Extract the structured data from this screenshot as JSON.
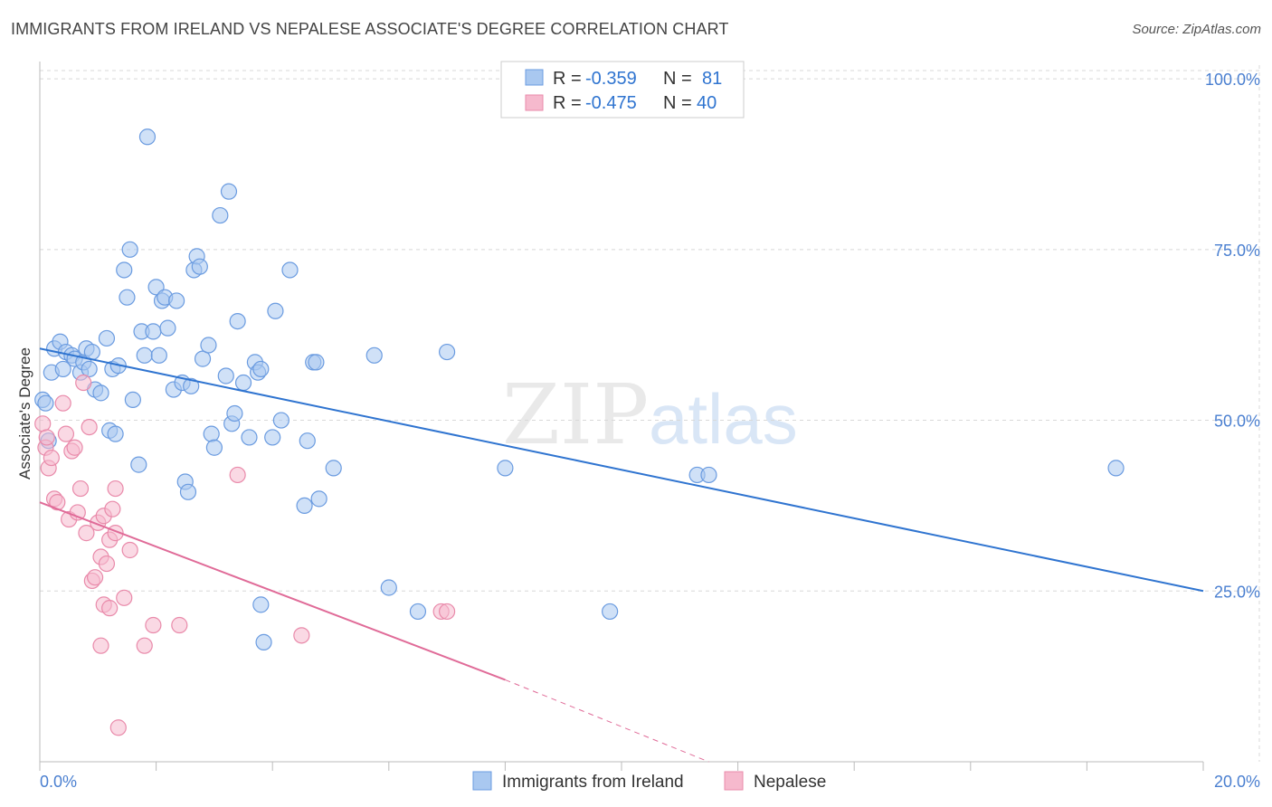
{
  "title": "IMMIGRANTS FROM IRELAND VS NEPALESE ASSOCIATE'S DEGREE CORRELATION CHART",
  "source": "Source: ZipAtlas.com",
  "watermark": {
    "zip": "ZIP",
    "atlas": "atlas"
  },
  "colors": {
    "ireland_fill": "#a9c8f0",
    "ireland_stroke": "#6a9be0",
    "ireland_line": "#2f74d0",
    "nepalese_fill": "#f6b9cd",
    "nepalese_stroke": "#e98aaa",
    "nepalese_line": "#e06b98",
    "grid": "#d8d8d8",
    "tick_text": "#4a7fd0"
  },
  "stats_box": {
    "rows": [
      {
        "r_label": "R =",
        "r_value": "-0.359",
        "n_label": "N =",
        "n_value": "81"
      },
      {
        "r_label": "R =",
        "r_value": "-0.475",
        "n_label": "N =",
        "n_value": "40"
      }
    ]
  },
  "chart_data": {
    "type": "scatter",
    "title": "IMMIGRANTS FROM IRELAND VS NEPALESE ASSOCIATE'S DEGREE CORRELATION CHART",
    "xlabel": "",
    "ylabel": "Associate's Degree",
    "xlim": [
      0,
      20
    ],
    "ylim": [
      0,
      102
    ],
    "x_ticks": [
      0,
      20
    ],
    "x_tick_labels": [
      "0.0%",
      "20.0%"
    ],
    "y_ticks": [
      25,
      50,
      75,
      100
    ],
    "y_tick_labels": [
      "25.0%",
      "50.0%",
      "75.0%",
      "100.0%"
    ],
    "grid": true,
    "legend_position": "bottom",
    "series": [
      {
        "name": "Immigrants from Ireland",
        "trend": {
          "x0": 0,
          "y0": 60.5,
          "x1": 20,
          "y1": 25.0
        },
        "points": [
          [
            0.05,
            53.0
          ],
          [
            0.1,
            52.5
          ],
          [
            0.15,
            47.0
          ],
          [
            0.2,
            57.0
          ],
          [
            0.25,
            60.5
          ],
          [
            0.35,
            61.5
          ],
          [
            0.4,
            57.5
          ],
          [
            0.45,
            60.0
          ],
          [
            0.55,
            59.5
          ],
          [
            0.6,
            59.0
          ],
          [
            0.7,
            57.0
          ],
          [
            0.75,
            58.5
          ],
          [
            0.8,
            60.5
          ],
          [
            0.85,
            57.5
          ],
          [
            0.9,
            60.0
          ],
          [
            0.95,
            54.5
          ],
          [
            1.05,
            54.0
          ],
          [
            1.15,
            62.0
          ],
          [
            1.25,
            57.5
          ],
          [
            1.35,
            58.0
          ],
          [
            1.2,
            48.5
          ],
          [
            1.3,
            48.0
          ],
          [
            1.45,
            72.0
          ],
          [
            1.5,
            68.0
          ],
          [
            1.55,
            75.0
          ],
          [
            1.6,
            53.0
          ],
          [
            1.7,
            43.5
          ],
          [
            1.75,
            63.0
          ],
          [
            1.8,
            59.5
          ],
          [
            1.85,
            91.5
          ],
          [
            1.95,
            63.0
          ],
          [
            2.0,
            69.5
          ],
          [
            2.05,
            59.5
          ],
          [
            2.1,
            67.5
          ],
          [
            2.15,
            68.0
          ],
          [
            2.2,
            63.5
          ],
          [
            2.3,
            54.5
          ],
          [
            2.35,
            67.5
          ],
          [
            2.45,
            55.5
          ],
          [
            2.5,
            41.0
          ],
          [
            2.55,
            39.5
          ],
          [
            2.6,
            55.0
          ],
          [
            2.65,
            72.0
          ],
          [
            2.7,
            74.0
          ],
          [
            2.75,
            72.5
          ],
          [
            2.8,
            59.0
          ],
          [
            2.9,
            61.0
          ],
          [
            2.95,
            48.0
          ],
          [
            3.0,
            46.0
          ],
          [
            3.1,
            80.0
          ],
          [
            3.2,
            56.5
          ],
          [
            3.25,
            83.5
          ],
          [
            3.3,
            49.5
          ],
          [
            3.35,
            51.0
          ],
          [
            3.4,
            64.5
          ],
          [
            3.5,
            55.5
          ],
          [
            3.6,
            47.5
          ],
          [
            3.7,
            58.5
          ],
          [
            3.75,
            57.0
          ],
          [
            3.8,
            57.5
          ],
          [
            3.8,
            23.0
          ],
          [
            3.85,
            17.5
          ],
          [
            4.0,
            47.5
          ],
          [
            4.05,
            66.0
          ],
          [
            4.15,
            50.0
          ],
          [
            4.3,
            72.0
          ],
          [
            4.55,
            37.5
          ],
          [
            4.6,
            47.0
          ],
          [
            4.7,
            58.5
          ],
          [
            4.75,
            58.5
          ],
          [
            4.8,
            38.5
          ],
          [
            5.05,
            43.0
          ],
          [
            5.75,
            59.5
          ],
          [
            6.0,
            25.5
          ],
          [
            6.5,
            22.0
          ],
          [
            7.0,
            60.0
          ],
          [
            8.0,
            43.0
          ],
          [
            9.8,
            22.0
          ],
          [
            11.3,
            42.0
          ],
          [
            11.5,
            42.0
          ],
          [
            18.5,
            43.0
          ]
        ]
      },
      {
        "name": "Nepalese",
        "trend": {
          "x0": 0,
          "y0": 38.0,
          "x1": 8.0,
          "y1": 12.0
        },
        "trend_dashed_to": {
          "x": 11.5,
          "y": 0
        },
        "points": [
          [
            0.05,
            49.5
          ],
          [
            0.1,
            46.0
          ],
          [
            0.12,
            47.5
          ],
          [
            0.15,
            43.0
          ],
          [
            0.2,
            44.5
          ],
          [
            0.25,
            38.5
          ],
          [
            0.3,
            38.0
          ],
          [
            0.4,
            52.5
          ],
          [
            0.45,
            48.0
          ],
          [
            0.5,
            35.5
          ],
          [
            0.55,
            45.5
          ],
          [
            0.6,
            46.0
          ],
          [
            0.65,
            36.5
          ],
          [
            0.7,
            40.0
          ],
          [
            0.75,
            55.5
          ],
          [
            0.8,
            33.5
          ],
          [
            0.85,
            49.0
          ],
          [
            0.9,
            26.5
          ],
          [
            0.95,
            27.0
          ],
          [
            1.0,
            35.0
          ],
          [
            1.05,
            30.0
          ],
          [
            1.1,
            36.0
          ],
          [
            1.15,
            29.0
          ],
          [
            1.2,
            32.5
          ],
          [
            1.3,
            33.5
          ],
          [
            1.05,
            17.0
          ],
          [
            1.1,
            23.0
          ],
          [
            1.2,
            22.5
          ],
          [
            1.25,
            37.0
          ],
          [
            1.3,
            40.0
          ],
          [
            1.35,
            5.0
          ],
          [
            1.45,
            24.0
          ],
          [
            1.55,
            31.0
          ],
          [
            1.8,
            17.0
          ],
          [
            1.95,
            20.0
          ],
          [
            2.4,
            20.0
          ],
          [
            3.4,
            42.0
          ],
          [
            4.5,
            18.5
          ],
          [
            6.9,
            22.0
          ],
          [
            7.0,
            22.0
          ]
        ]
      }
    ]
  },
  "legend": {
    "items": [
      {
        "label": "Immigrants from Ireland"
      },
      {
        "label": "Nepalese"
      }
    ]
  }
}
